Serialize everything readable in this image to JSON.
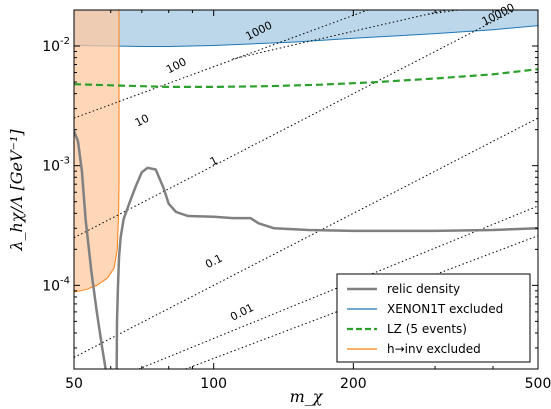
{
  "chart_data": {
    "type": "line",
    "xscale": "log",
    "yscale": "log",
    "xlim": [
      50,
      500
    ],
    "ylim": [
      2e-05,
      0.02
    ],
    "xlabel": "m_χ",
    "ylabel": "λ_hχ/Λ [GeV⁻¹]",
    "xticks": [
      {
        "value": 50,
        "label": "50"
      },
      {
        "value": 100,
        "label": "100"
      },
      {
        "value": 200,
        "label": "200"
      },
      {
        "value": 500,
        "label": "500"
      }
    ],
    "yticks": [
      {
        "value": 0.0001,
        "base": "10",
        "exp": "-4"
      },
      {
        "value": 0.001,
        "base": "10",
        "exp": "-3"
      },
      {
        "value": 0.01,
        "base": "10",
        "exp": "-2"
      }
    ],
    "legend_position": "bottom-right",
    "legend": [
      {
        "label": "relic density",
        "style": "solid",
        "color": "#808080"
      },
      {
        "label": "XENON1T excluded",
        "style": "solid",
        "color": "#1f77b4"
      },
      {
        "label": "LZ (5 events)",
        "style": "dashed",
        "color": "#2ca02c"
      },
      {
        "label": "h→inv excluded",
        "style": "solid",
        "color": "#ff7f0e"
      }
    ],
    "series": [
      {
        "name": "relic density",
        "color": "#808080",
        "branches": [
          [
            [
              50,
              0.00195
            ],
            [
              51,
              0.0016
            ],
            [
              52,
              0.0009
            ],
            [
              53,
              0.00035
            ],
            [
              54.5,
              0.00013
            ],
            [
              56,
              6e-05
            ],
            [
              57.5,
              3e-05
            ],
            [
              58.5,
              2e-05
            ]
          ],
          [
            [
              61.8,
              2e-05
            ],
            [
              61.9,
              5e-05
            ],
            [
              62.2,
              0.0001
            ],
            [
              62.5,
              0.00017
            ],
            [
              63,
              0.00025
            ],
            [
              64,
              0.00036
            ],
            [
              66,
              0.0005
            ],
            [
              68,
              0.00068
            ],
            [
              70,
              0.00088
            ],
            [
              72,
              0.00096
            ],
            [
              75,
              0.00093
            ],
            [
              78,
              0.00065
            ],
            [
              80,
              0.00048
            ],
            [
              83,
              0.00041
            ],
            [
              88,
              0.00038
            ],
            [
              100,
              0.000375
            ],
            [
              110,
              0.000365
            ],
            [
              120,
              0.000365
            ],
            [
              125,
              0.00033
            ],
            [
              135,
              0.0003
            ],
            [
              160,
              0.00029
            ],
            [
              200,
              0.000285
            ],
            [
              250,
              0.000285
            ],
            [
              300,
              0.000285
            ],
            [
              400,
              0.00029
            ],
            [
              500,
              0.0003
            ]
          ]
        ]
      },
      {
        "name": "LZ (5 events)",
        "color": "#2ca02c",
        "points": [
          [
            50,
            0.0048
          ],
          [
            60,
            0.0047
          ],
          [
            70,
            0.00462
          ],
          [
            80,
            0.00455
          ],
          [
            100,
            0.00455
          ],
          [
            130,
            0.00462
          ],
          [
            170,
            0.00475
          ],
          [
            220,
            0.00498
          ],
          [
            300,
            0.00535
          ],
          [
            400,
            0.0058
          ],
          [
            500,
            0.0064
          ]
        ]
      }
    ],
    "regions": [
      {
        "name": "XENON1T excluded",
        "fill": "#a6c8e3",
        "edge": "#1f77b4",
        "lower_boundary": [
          [
            50,
            0.0101
          ],
          [
            60,
            0.01
          ],
          [
            70,
            0.0099
          ],
          [
            80,
            0.0099
          ],
          [
            100,
            0.0101
          ],
          [
            150,
            0.0108
          ],
          [
            200,
            0.0116
          ],
          [
            300,
            0.0127
          ],
          [
            400,
            0.0137
          ],
          [
            500,
            0.0148
          ]
        ]
      },
      {
        "name": "h→inv excluded",
        "fill": "#fdc8a0",
        "edge": "#ff7f0e",
        "x_max": 62.5,
        "lower_boundary": [
          [
            50,
            8.8e-05
          ],
          [
            53,
            9.2e-05
          ],
          [
            56,
            0.0001
          ],
          [
            59,
            0.000115
          ],
          [
            61,
            0.00014
          ],
          [
            62,
            0.0002
          ],
          [
            62.4,
            0.0004
          ],
          [
            62.5,
            0.0007
          ]
        ]
      }
    ],
    "contours": [
      {
        "label": "0.01",
        "points": [
          [
            87,
            2e-05
          ],
          [
            500,
            0.00026
          ]
        ],
        "label_at": [
          [
            115,
            6e-05
          ],
          -27
        ]
      },
      {
        "label": "0.1",
        "points": [
          [
            69,
            2e-05
          ],
          [
            500,
            0.00046
          ]
        ],
        "label_at": [
          [
            100,
            0.00016
          ],
          -27
        ]
      },
      {
        "label": "1",
        "points": [
          [
            50,
            2.5e-05
          ],
          [
            500,
            0.0025
          ]
        ],
        "label_at": [
          [
            100,
            0.0011
          ],
          -27
        ]
      },
      {
        "label": "10",
        "points": [
          [
            50,
            0.00025
          ],
          [
            500,
            0.025
          ]
        ],
        "label_at": [
          [
            70,
            0.0024
          ],
          -27
        ]
      },
      {
        "label": "100",
        "points": [
          [
            50,
            0.0025
          ],
          [
            215,
            0.02
          ]
        ],
        "label_at": [
          [
            83,
            0.0069
          ],
          -27
        ]
      },
      {
        "label": "1000",
        "points": [
          [
            110,
            0.0078
          ],
          [
            500,
            0.03
          ]
        ],
        "label_at": [
          [
            125,
            0.0135
          ],
          -27
        ]
      },
      {
        "label": "10000",
        "points": [
          [
            290,
            0.0184
          ],
          [
            500,
            0.025
          ]
        ],
        "label_at": [
          [
            410,
            0.0185
          ],
          -27
        ]
      }
    ]
  }
}
